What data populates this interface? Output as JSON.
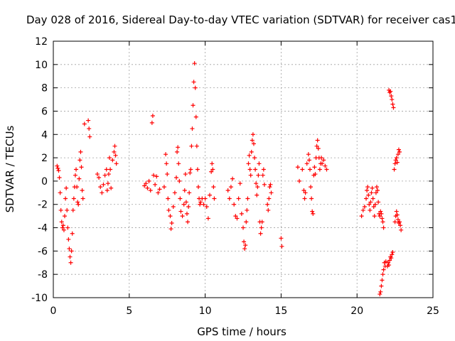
{
  "chart_data": {
    "type": "scatter",
    "title": "Day 028 of 2016, Sidereal Day-to-day VTEC variation (SDTVAR) for receiver cas1",
    "xlabel": "GPS time / hours",
    "ylabel": "SDTVAR / TECUs",
    "xlim": [
      0,
      25
    ],
    "ylim": [
      -10,
      12
    ],
    "x_ticks": [
      0,
      5,
      10,
      15,
      20,
      25
    ],
    "y_ticks": [
      -10,
      -8,
      -6,
      -4,
      -2,
      0,
      2,
      4,
      6,
      8,
      10,
      12
    ],
    "grid": true,
    "marker": "+",
    "color": "#ff0000",
    "series": [
      {
        "name": "SDTVAR",
        "points": [
          [
            0.25,
            1.3
          ],
          [
            0.3,
            1.1
          ],
          [
            0.35,
            0.9
          ],
          [
            0.4,
            0.3
          ],
          [
            0.45,
            -1.0
          ],
          [
            0.5,
            -2.5
          ],
          [
            0.55,
            -3.5
          ],
          [
            0.6,
            -4.0
          ],
          [
            0.65,
            -3.8
          ],
          [
            0.7,
            -4.2
          ],
          [
            0.75,
            -3.0
          ],
          [
            0.8,
            -1.5
          ],
          [
            0.85,
            -0.6
          ],
          [
            0.9,
            -2.5
          ],
          [
            0.95,
            -4.0
          ],
          [
            1.0,
            -5.0
          ],
          [
            1.05,
            -5.8
          ],
          [
            1.1,
            -6.5
          ],
          [
            1.15,
            -7.0
          ],
          [
            1.2,
            -6.0
          ],
          [
            1.25,
            -4.5
          ],
          [
            1.3,
            -2.5
          ],
          [
            1.35,
            -1.5
          ],
          [
            1.4,
            -0.5
          ],
          [
            1.45,
            0.5
          ],
          [
            1.5,
            1.0
          ],
          [
            1.55,
            -0.5
          ],
          [
            1.6,
            -1.8
          ],
          [
            1.65,
            -2.0
          ],
          [
            1.7,
            0.2
          ],
          [
            1.75,
            1.8
          ],
          [
            1.8,
            2.5
          ],
          [
            1.85,
            1.2
          ],
          [
            1.9,
            -0.8
          ],
          [
            1.95,
            -1.5
          ],
          [
            2.05,
            4.9
          ],
          [
            2.3,
            5.2
          ],
          [
            2.35,
            4.5
          ],
          [
            2.4,
            3.8
          ],
          [
            2.9,
            0.6
          ],
          [
            3.0,
            0.3
          ],
          [
            3.1,
            -0.5
          ],
          [
            3.2,
            -1.0
          ],
          [
            3.3,
            -0.3
          ],
          [
            3.4,
            0.5
          ],
          [
            3.5,
            1.0
          ],
          [
            3.55,
            -0.8
          ],
          [
            3.6,
            -0.2
          ],
          [
            3.65,
            0.6
          ],
          [
            3.7,
            2.0
          ],
          [
            3.75,
            1.0
          ],
          [
            3.8,
            -0.6
          ],
          [
            3.9,
            1.8
          ],
          [
            4.0,
            2.5
          ],
          [
            4.05,
            3.0
          ],
          [
            4.1,
            2.2
          ],
          [
            4.15,
            1.5
          ],
          [
            6.0,
            -0.4
          ],
          [
            6.1,
            -0.2
          ],
          [
            6.2,
            -0.6
          ],
          [
            6.3,
            0.0
          ],
          [
            6.4,
            -0.8
          ],
          [
            6.5,
            5.0
          ],
          [
            6.55,
            5.6
          ],
          [
            6.6,
            0.5
          ],
          [
            6.7,
            -0.3
          ],
          [
            6.8,
            0.4
          ],
          [
            6.9,
            -1.0
          ],
          [
            7.0,
            -0.7
          ],
          [
            7.3,
            -0.5
          ],
          [
            7.4,
            2.3
          ],
          [
            7.45,
            1.5
          ],
          [
            7.5,
            0.6
          ],
          [
            7.55,
            -1.5
          ],
          [
            7.6,
            -2.5
          ],
          [
            7.7,
            -3.0
          ],
          [
            7.75,
            -4.1
          ],
          [
            7.8,
            -3.6
          ],
          [
            7.9,
            -2.2
          ],
          [
            8.0,
            -1.0
          ],
          [
            8.1,
            0.3
          ],
          [
            8.15,
            2.5
          ],
          [
            8.2,
            2.9
          ],
          [
            8.25,
            1.5
          ],
          [
            8.3,
            0.0
          ],
          [
            8.35,
            -1.5
          ],
          [
            8.4,
            -2.6
          ],
          [
            8.5,
            -3.0
          ],
          [
            8.6,
            -2.0
          ],
          [
            8.65,
            -0.8
          ],
          [
            8.7,
            0.6
          ],
          [
            8.75,
            -1.8
          ],
          [
            8.8,
            -2.8
          ],
          [
            8.85,
            -3.5
          ],
          [
            8.9,
            -2.2
          ],
          [
            8.95,
            -1.0
          ],
          [
            9.0,
            0.7
          ],
          [
            9.05,
            1.0
          ],
          [
            9.1,
            3.0
          ],
          [
            9.15,
            4.5
          ],
          [
            9.2,
            6.5
          ],
          [
            9.25,
            8.5
          ],
          [
            9.3,
            10.1
          ],
          [
            9.35,
            8.0
          ],
          [
            9.4,
            5.5
          ],
          [
            9.45,
            3.0
          ],
          [
            9.5,
            1.0
          ],
          [
            9.55,
            -0.5
          ],
          [
            9.6,
            -1.5
          ],
          [
            9.65,
            -2.0
          ],
          [
            9.7,
            -1.8
          ],
          [
            9.8,
            -1.5
          ],
          [
            9.9,
            -2.0
          ],
          [
            10.0,
            -1.5
          ],
          [
            10.1,
            -2.2
          ],
          [
            10.2,
            -3.2
          ],
          [
            10.3,
            -1.2
          ],
          [
            10.4,
            0.8
          ],
          [
            10.45,
            1.5
          ],
          [
            10.5,
            1.0
          ],
          [
            10.55,
            -0.5
          ],
          [
            10.6,
            -1.5
          ],
          [
            11.5,
            -0.8
          ],
          [
            11.6,
            -1.5
          ],
          [
            11.7,
            -0.5
          ],
          [
            11.8,
            0.2
          ],
          [
            11.9,
            -2.0
          ],
          [
            12.0,
            -3.0
          ],
          [
            12.1,
            -3.2
          ],
          [
            12.2,
            -1.5
          ],
          [
            12.3,
            -0.2
          ],
          [
            12.4,
            -2.8
          ],
          [
            12.5,
            -4.0
          ],
          [
            12.55,
            -5.2
          ],
          [
            12.6,
            -5.8
          ],
          [
            12.65,
            -5.5
          ],
          [
            12.7,
            -3.5
          ],
          [
            12.75,
            -2.5
          ],
          [
            12.8,
            -1.5
          ],
          [
            12.85,
            1.5
          ],
          [
            12.9,
            2.2
          ],
          [
            12.95,
            1.0
          ],
          [
            13.0,
            0.5
          ],
          [
            13.05,
            2.5
          ],
          [
            13.1,
            3.5
          ],
          [
            13.15,
            4.0
          ],
          [
            13.2,
            3.2
          ],
          [
            13.25,
            2.0
          ],
          [
            13.3,
            1.0
          ],
          [
            13.35,
            -0.2
          ],
          [
            13.4,
            -1.2
          ],
          [
            13.45,
            -0.5
          ],
          [
            13.5,
            0.5
          ],
          [
            13.55,
            1.5
          ],
          [
            13.6,
            -3.5
          ],
          [
            13.65,
            -4.5
          ],
          [
            13.7,
            -4.0
          ],
          [
            13.75,
            -3.5
          ],
          [
            13.8,
            0.5
          ],
          [
            13.85,
            1.0
          ],
          [
            13.9,
            -0.3
          ],
          [
            14.1,
            -2.0
          ],
          [
            14.15,
            -2.5
          ],
          [
            14.2,
            -1.5
          ],
          [
            14.25,
            -0.5
          ],
          [
            14.3,
            -0.3
          ],
          [
            14.35,
            -1.0
          ],
          [
            15.0,
            -4.9
          ],
          [
            15.05,
            -5.6
          ],
          [
            16.1,
            1.2
          ],
          [
            16.2,
            0.0
          ],
          [
            16.4,
            1.0
          ],
          [
            16.5,
            -0.8
          ],
          [
            16.55,
            -1.5
          ],
          [
            16.6,
            -1.0
          ],
          [
            16.7,
            1.5
          ],
          [
            16.8,
            2.3
          ],
          [
            16.85,
            1.8
          ],
          [
            16.9,
            1.0
          ],
          [
            16.95,
            -0.5
          ],
          [
            17.0,
            -1.5
          ],
          [
            17.05,
            -2.6
          ],
          [
            17.1,
            -2.8
          ],
          [
            17.15,
            0.5
          ],
          [
            17.2,
            1.2
          ],
          [
            17.25,
            0.6
          ],
          [
            17.3,
            2.0
          ],
          [
            17.35,
            3.0
          ],
          [
            17.4,
            3.5
          ],
          [
            17.45,
            2.8
          ],
          [
            17.5,
            2.0
          ],
          [
            17.55,
            1.0
          ],
          [
            17.6,
            1.5
          ],
          [
            17.65,
            2.0
          ],
          [
            17.7,
            1.5
          ],
          [
            17.8,
            1.8
          ],
          [
            17.9,
            1.3
          ],
          [
            18.0,
            1.0
          ],
          [
            20.3,
            -3.0
          ],
          [
            20.4,
            -2.5
          ],
          [
            20.5,
            -2.2
          ],
          [
            20.6,
            -1.5
          ],
          [
            20.65,
            -0.8
          ],
          [
            20.7,
            -0.5
          ],
          [
            20.75,
            -1.2
          ],
          [
            20.8,
            -2.0
          ],
          [
            20.85,
            -2.5
          ],
          [
            20.9,
            -1.8
          ],
          [
            20.95,
            -1.0
          ],
          [
            21.0,
            -0.6
          ],
          [
            21.05,
            -1.5
          ],
          [
            21.1,
            -2.2
          ],
          [
            21.15,
            -3.0
          ],
          [
            21.2,
            -2.0
          ],
          [
            21.25,
            -1.0
          ],
          [
            21.3,
            -0.5
          ],
          [
            21.35,
            -0.8
          ],
          [
            21.4,
            -1.8
          ],
          [
            21.45,
            -2.8
          ],
          [
            21.5,
            -3.0
          ],
          [
            21.55,
            -2.6
          ],
          [
            21.6,
            -2.8
          ],
          [
            21.65,
            -3.2
          ],
          [
            21.7,
            -3.5
          ],
          [
            21.75,
            -4.0
          ],
          [
            21.5,
            -9.7
          ],
          [
            21.55,
            -9.5
          ],
          [
            21.6,
            -9.0
          ],
          [
            21.65,
            -8.5
          ],
          [
            21.7,
            -8.0
          ],
          [
            21.75,
            -7.6
          ],
          [
            21.8,
            -7.0
          ],
          [
            21.85,
            -7.3
          ],
          [
            21.9,
            -6.9
          ],
          [
            22.0,
            -7.3
          ],
          [
            22.05,
            -7.0
          ],
          [
            22.1,
            -7.2
          ],
          [
            22.15,
            -6.8
          ],
          [
            22.2,
            -6.5
          ],
          [
            22.25,
            -6.6
          ],
          [
            22.3,
            -6.3
          ],
          [
            22.35,
            -6.1
          ],
          [
            22.1,
            7.8
          ],
          [
            22.15,
            7.6
          ],
          [
            22.2,
            7.7
          ],
          [
            22.25,
            7.3
          ],
          [
            22.3,
            7.0
          ],
          [
            22.35,
            6.6
          ],
          [
            22.4,
            6.3
          ],
          [
            22.45,
            1.0
          ],
          [
            22.5,
            1.5
          ],
          [
            22.55,
            1.8
          ],
          [
            22.6,
            2.0
          ],
          [
            22.65,
            1.6
          ],
          [
            22.7,
            2.3
          ],
          [
            22.75,
            2.7
          ],
          [
            22.8,
            2.5
          ],
          [
            22.5,
            -3.5
          ],
          [
            22.55,
            -3.0
          ],
          [
            22.6,
            -2.6
          ],
          [
            22.65,
            -2.9
          ],
          [
            22.7,
            -3.3
          ],
          [
            22.75,
            -3.6
          ],
          [
            22.8,
            -3.5
          ],
          [
            22.85,
            -3.8
          ],
          [
            22.9,
            -4.2
          ]
        ]
      }
    ]
  }
}
